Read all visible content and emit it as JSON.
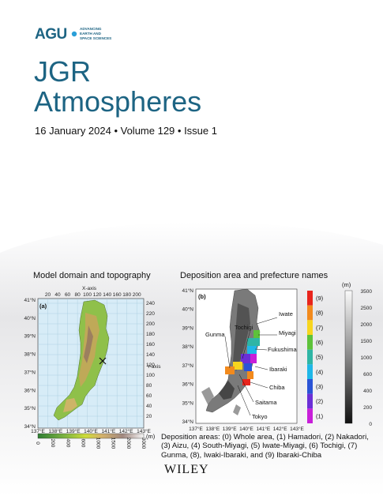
{
  "publisher": {
    "logo_letters": "AGU",
    "logo_tagline": [
      "ADVANCING",
      "EARTH AND",
      "SPACE SCIENCES"
    ],
    "logo_color": "#1d6483",
    "accent_color": "#2a9fd8"
  },
  "journal": {
    "title_line1": "JGR",
    "title_line2": "Atmospheres",
    "issue_line": "16 January 2024 • Volume 129 • Issue 1"
  },
  "figure": {
    "panel_a": {
      "title": "Model domain and topography",
      "label": "(a)",
      "x_axis_title": "X-axis",
      "y_axis_title": "Y-axis",
      "x_grid_ticks": [
        "20",
        "40",
        "60",
        "80",
        "100",
        "120",
        "140",
        "160",
        "180",
        "200"
      ],
      "y_grid_ticks": [
        "240",
        "220",
        "200",
        "180",
        "160",
        "140",
        "120",
        "100",
        "80",
        "60",
        "40",
        "20"
      ],
      "lat_ticks": [
        "41°N",
        "40°N",
        "39°N",
        "38°N",
        "37°N",
        "36°N",
        "35°N",
        "34°N"
      ],
      "lon_ticks": [
        "137°E",
        "138°E",
        "139°E",
        "140°E",
        "141°E",
        "142°E",
        "143°E"
      ],
      "colorbar_unit": "(m)",
      "colorbar_ticks": [
        "0",
        "200",
        "400",
        "600",
        "1000",
        "1500",
        "2000",
        "3000"
      ]
    },
    "panel_b": {
      "title": "Deposition area and prefecture names",
      "label": "(b)",
      "lat_ticks": [
        "41°N",
        "40°N",
        "39°N",
        "38°N",
        "37°N",
        "36°N",
        "35°N",
        "34°N"
      ],
      "lon_ticks": [
        "137°E",
        "138°E",
        "139°E",
        "140°E",
        "141°E",
        "142°E",
        "143°E"
      ],
      "prefectures": [
        "Iwate",
        "Miyagi",
        "Tochigi",
        "Gunma",
        "Fukushima",
        "Ibaraki",
        "Chiba",
        "Saitama",
        "Tokyo"
      ],
      "area_legend": [
        "(9)",
        "(8)",
        "(7)",
        "(6)",
        "(5)",
        "(4)",
        "(3)",
        "(2)",
        "(1)"
      ],
      "area_colors": [
        "#e8241c",
        "#f28a1d",
        "#f7d51e",
        "#5dc23a",
        "#2fb5a5",
        "#1fb7e8",
        "#2a54d6",
        "#6b2fd6",
        "#c81fd9"
      ],
      "elev_unit": "(m)",
      "elev_ticks": [
        "3500",
        "2500",
        "2000",
        "1500",
        "1000",
        "600",
        "400",
        "200",
        "0"
      ]
    },
    "caption": "Deposition areas: (0) Whole area, (1) Hamadori, (2) Nakadori, (3) Aizu, (4) South-Miyagi, (5) Iwate-Miyagi, (6) Tochigi, (7) Gunma, (8), Iwaki-Ibaraki, and (9) Ibaraki-Chiba"
  },
  "footer": {
    "publisher_name": "WILEY"
  }
}
